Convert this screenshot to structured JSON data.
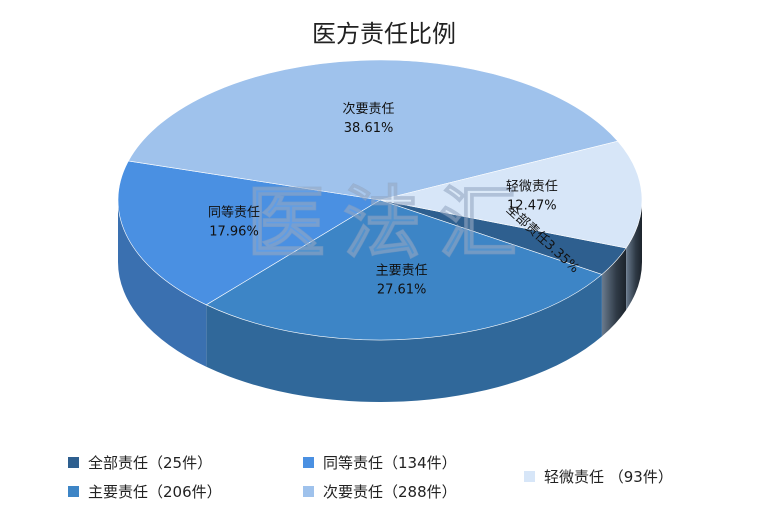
{
  "chart_data": {
    "type": "pie",
    "title": "医方责任比例",
    "slices": [
      {
        "label": "全部责任",
        "value": 25,
        "percent_label": "3.35%",
        "color": "#2e5f8f"
      },
      {
        "label": "主要责任",
        "value": 206,
        "percent_label": "27.61%",
        "color": "#3d85c6"
      },
      {
        "label": "同等责任",
        "value": 134,
        "percent_label": "17.96%",
        "color": "#4a90e2"
      },
      {
        "label": "次要责任",
        "value": 288,
        "percent_label": "38.61%",
        "color": "#9fc2ec"
      },
      {
        "label": "轻微责任",
        "value": 93,
        "percent_label": "12.47%",
        "color": "#d7e6f8"
      }
    ],
    "legend": [
      {
        "text": "全部责任（25件）",
        "color": "#2e5f8f"
      },
      {
        "text": "同等责任（134件）",
        "color": "#4a90e2"
      },
      {
        "text": "轻微责任  （93件）",
        "color": "#d7e6f8"
      },
      {
        "text": "主要责任（206件）",
        "color": "#3d85c6"
      },
      {
        "text": "次要责任（288件）",
        "color": "#9fc2ec"
      }
    ]
  },
  "watermark": "医法汇"
}
